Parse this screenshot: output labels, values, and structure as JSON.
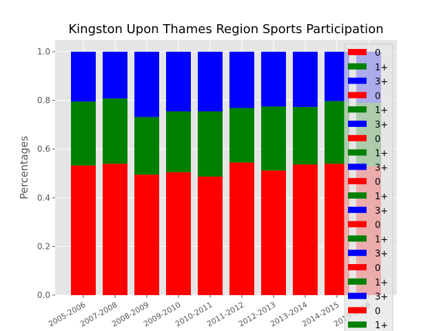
{
  "chart_data": {
    "type": "bar",
    "stacked": true,
    "title": "Kingston Upon Thames Region Sports Participation",
    "xlabel": "",
    "ylabel": "Percentages",
    "ylim": [
      0,
      1.0
    ],
    "yticks": [
      "0.0",
      "0.2",
      "0.4",
      "0.6",
      "0.8",
      "1.0"
    ],
    "grid": true,
    "legend_position": "right",
    "categories": [
      "2005-2006",
      "2007-2008",
      "2008-2009",
      "2009-2010",
      "2010-2011",
      "2011-2012",
      "2012-2013",
      "2013-2014",
      "2014-2015",
      "2015-2016"
    ],
    "series": [
      {
        "name": "0",
        "color": "#ff0000",
        "values": [
          0.533,
          0.54,
          0.495,
          0.505,
          0.487,
          0.545,
          0.512,
          0.537,
          0.54,
          0.53
        ]
      },
      {
        "name": "1+",
        "color": "#008000",
        "values": [
          0.262,
          0.268,
          0.237,
          0.25,
          0.268,
          0.224,
          0.263,
          0.236,
          0.257,
          0.26
        ]
      },
      {
        "name": "3+",
        "color": "#0000ff",
        "values": [
          0.205,
          0.192,
          0.268,
          0.245,
          0.245,
          0.231,
          0.225,
          0.227,
          0.203,
          0.21
        ]
      }
    ],
    "legend_entries": [
      {
        "label": "0",
        "color": "#ff0000"
      },
      {
        "label": "1+",
        "color": "#008000"
      },
      {
        "label": "3+",
        "color": "#0000ff"
      },
      {
        "label": "0",
        "color": "#ff0000"
      },
      {
        "label": "1+",
        "color": "#008000"
      },
      {
        "label": "3+",
        "color": "#0000ff"
      },
      {
        "label": "0",
        "color": "#ff0000"
      },
      {
        "label": "1+",
        "color": "#008000"
      },
      {
        "label": "3+",
        "color": "#0000ff"
      },
      {
        "label": "0",
        "color": "#ff0000"
      },
      {
        "label": "1+",
        "color": "#008000"
      },
      {
        "label": "3+",
        "color": "#0000ff"
      },
      {
        "label": "0",
        "color": "#ff0000"
      },
      {
        "label": "1+",
        "color": "#008000"
      },
      {
        "label": "3+",
        "color": "#0000ff"
      },
      {
        "label": "0",
        "color": "#ff0000"
      },
      {
        "label": "1+",
        "color": "#008000"
      },
      {
        "label": "3+",
        "color": "#0000ff"
      },
      {
        "label": "0",
        "color": "#ff0000"
      },
      {
        "label": "1+",
        "color": "#008000"
      }
    ]
  }
}
